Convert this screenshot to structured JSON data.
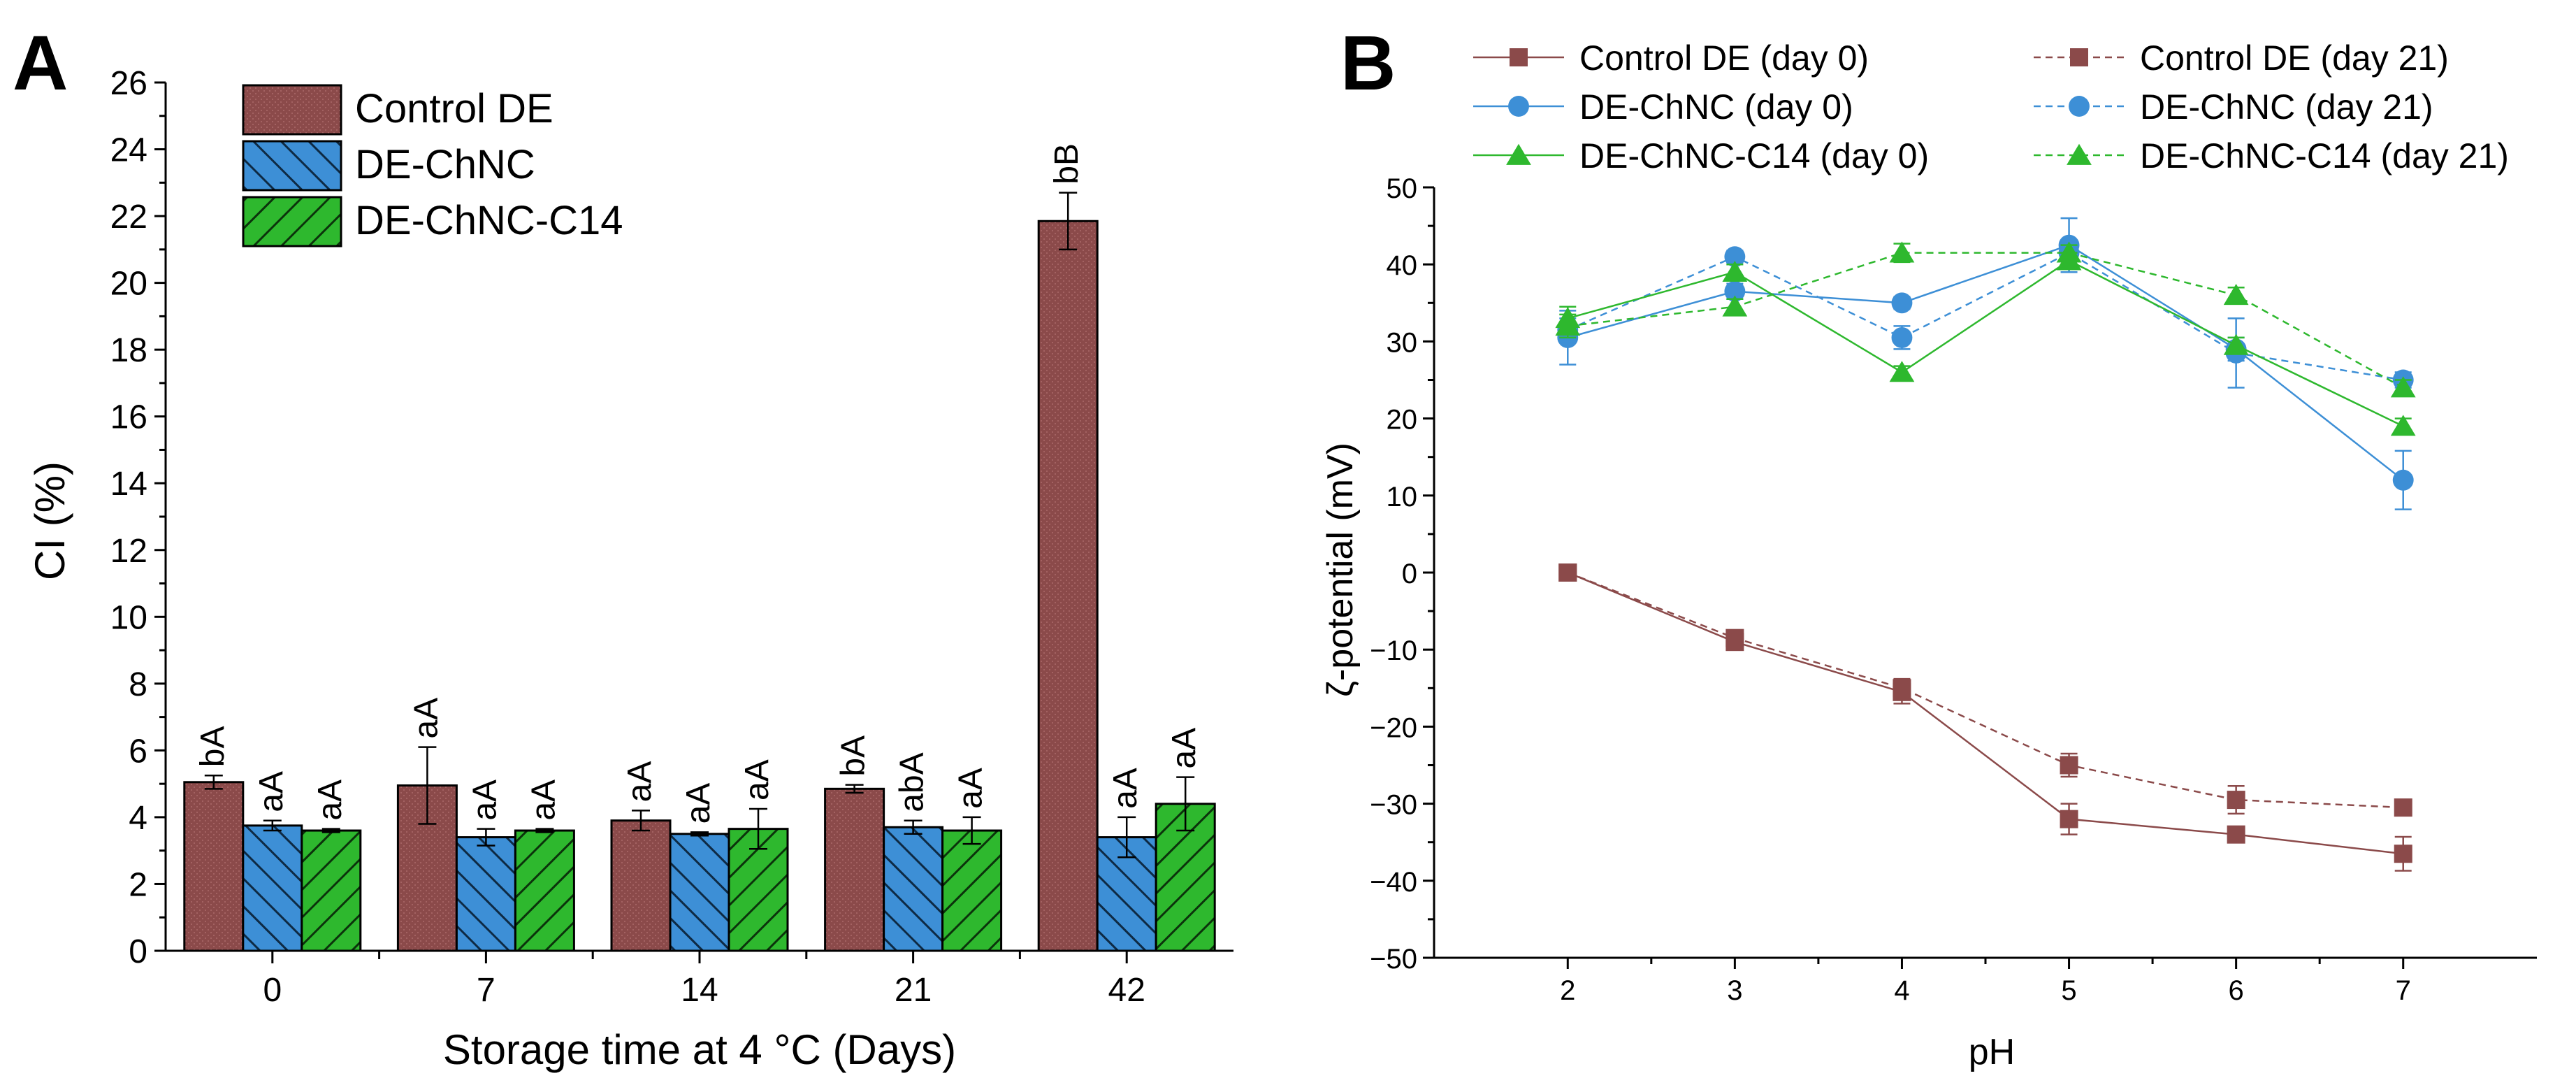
{
  "panels": [
    {
      "label": "A",
      "chart_data": {
        "type": "bar",
        "title": "",
        "xlabel": "Storage time at 4 °C (Days)",
        "ylabel": "CI (%)",
        "ylim": [
          0,
          26
        ],
        "yticks": [
          "0",
          "2",
          "4",
          "6",
          "8",
          "10",
          "12",
          "14",
          "16",
          "18",
          "20",
          "22",
          "24",
          "26"
        ],
        "categories": [
          "0",
          "7",
          "14",
          "21",
          "42"
        ],
        "legend_position": "top-left",
        "series": [
          {
            "name": "Control DE",
            "color": "#8b4a4a",
            "pattern": "dots",
            "values": [
              5.05,
              4.95,
              3.9,
              4.85,
              21.85
            ],
            "errors": [
              0.2,
              1.15,
              0.3,
              0.12,
              0.85
            ],
            "labels": [
              "bA",
              "aA",
              "aA",
              "bA",
              "bB"
            ]
          },
          {
            "name": "DE-ChNC",
            "color": "#3d8fd6",
            "pattern": "forward-hatch",
            "values": [
              3.75,
              3.4,
              3.5,
              3.7,
              3.4
            ],
            "errors": [
              0.15,
              0.25,
              0.05,
              0.2,
              0.6
            ],
            "labels": [
              "aA",
              "aA",
              "aA",
              "abA",
              "aA"
            ]
          },
          {
            "name": "DE-ChNC-C14",
            "color": "#2eb82e",
            "pattern": "back-hatch",
            "values": [
              3.6,
              3.6,
              3.65,
              3.6,
              4.4
            ],
            "errors": [
              0.05,
              0.05,
              0.6,
              0.4,
              0.8
            ],
            "labels": [
              "aA",
              "aA",
              "aA",
              "aA",
              "aA"
            ]
          }
        ]
      }
    },
    {
      "label": "B",
      "chart_data": {
        "type": "line",
        "title": "",
        "xlabel": "pH",
        "ylabel": "ζ-potential (mV)",
        "xlim": [
          1.2,
          7.8
        ],
        "ylim": [
          -50,
          50
        ],
        "xticks": [
          "2",
          "3",
          "4",
          "5",
          "6",
          "7"
        ],
        "yticks": [
          "−50",
          "−40",
          "−30",
          "−20",
          "−10",
          "0",
          "10",
          "20",
          "30",
          "40",
          "50"
        ],
        "x": [
          2,
          3,
          4,
          5,
          6,
          7
        ],
        "legend_position": "top",
        "series": [
          {
            "name": "Control DE (day 0)",
            "color": "#8b4a4a",
            "marker": "square",
            "dashed": false,
            "values": [
              0,
              -9,
              -15.5,
              -32,
              -34,
              -36.5
            ],
            "errors": [
              0.5,
              1.0,
              1.5,
              2.0,
              1.0,
              2.2
            ]
          },
          {
            "name": "Control DE (day 21)",
            "color": "#8b4a4a",
            "marker": "square",
            "dashed": true,
            "values": [
              0,
              -8.5,
              -15,
              -25,
              -29.5,
              -30.5
            ],
            "errors": [
              0.3,
              0.8,
              1.2,
              1.5,
              1.8,
              0.8
            ]
          },
          {
            "name": "DE-ChNC (day 0)",
            "color": "#3d8fd6",
            "marker": "circle",
            "dashed": false,
            "values": [
              30.5,
              36.5,
              35,
              42.5,
              29,
              12
            ],
            "errors": [
              3.5,
              1.0,
              0.8,
              3.5,
              1.5,
              3.8
            ]
          },
          {
            "name": "DE-ChNC (day 21)",
            "color": "#3d8fd6",
            "marker": "circle",
            "dashed": true,
            "values": [
              31.5,
              41,
              30.5,
              41.5,
              28.5,
              25
            ],
            "errors": [
              1.5,
              0.8,
              1.5,
              1.5,
              4.5,
              1.0
            ]
          },
          {
            "name": "DE-ChNC-C14 (day 0)",
            "color": "#2eb82e",
            "marker": "triangle",
            "dashed": false,
            "values": [
              33,
              39,
              26,
              40.5,
              29.5,
              19
            ],
            "errors": [
              1.5,
              1.0,
              0.8,
              1.0,
              1.0,
              1.0
            ]
          },
          {
            "name": "DE-ChNC-C14 (day 21)",
            "color": "#2eb82e",
            "marker": "triangle",
            "dashed": true,
            "values": [
              32,
              34.5,
              41.5,
              41.5,
              36,
              24
            ],
            "errors": [
              1.5,
              1.0,
              1.2,
              1.0,
              1.0,
              1.0
            ]
          }
        ]
      }
    }
  ]
}
